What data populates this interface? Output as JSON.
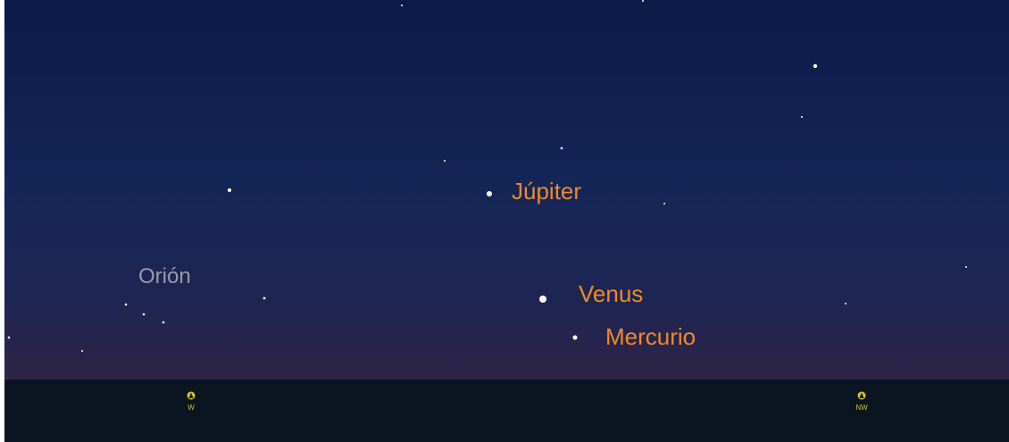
{
  "sky_labels": {
    "planets": [
      "Júpiter",
      "Venus",
      "Mercurio"
    ],
    "constellation": "Orión"
  },
  "compass": [
    "W",
    "NW"
  ]
}
